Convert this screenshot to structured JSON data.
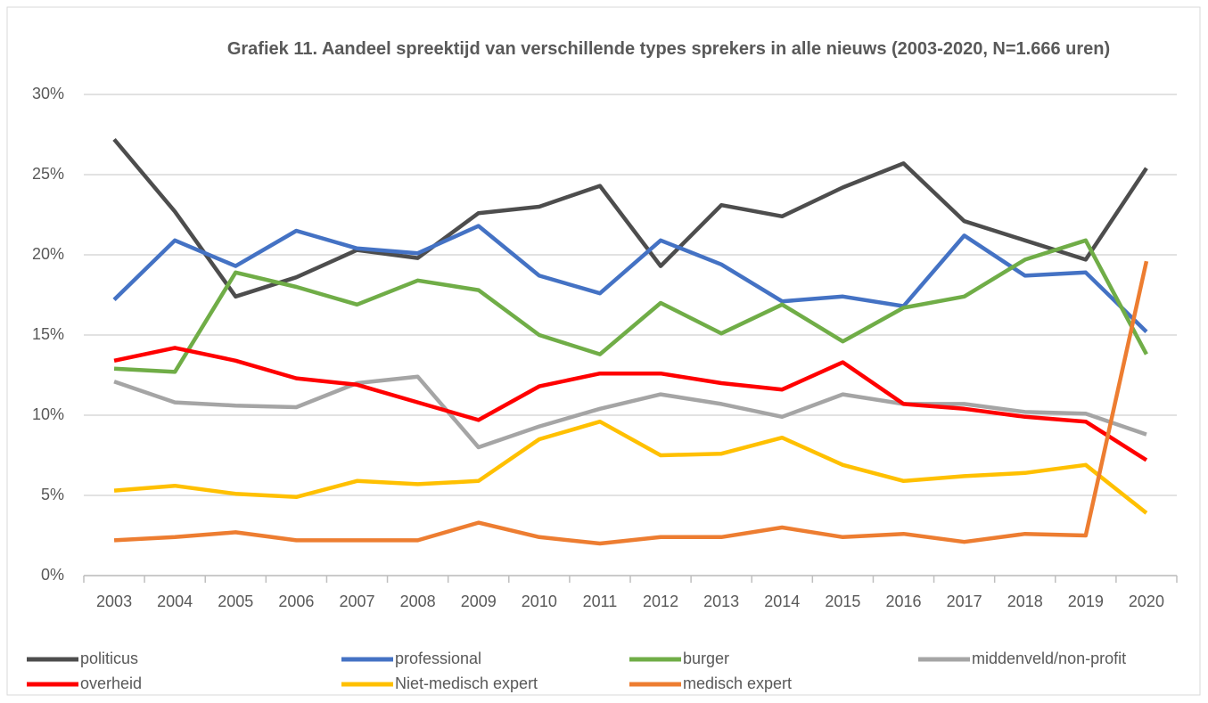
{
  "chart_data": {
    "type": "line",
    "title": "Grafiek 11. Aandeel spreektijd van verschillende types sprekers in alle nieuws (2003-2020, N=1.666 uren)",
    "categories": [
      "2003",
      "2004",
      "2005",
      "2006",
      "2007",
      "2008",
      "2009",
      "2010",
      "2011",
      "2012",
      "2013",
      "2014",
      "2015",
      "2016",
      "2017",
      "2018",
      "2019",
      "2020"
    ],
    "series": [
      {
        "name": "politicus",
        "color": "#4d4d4d",
        "values": [
          27.2,
          22.7,
          17.4,
          18.6,
          20.3,
          19.8,
          22.6,
          23.0,
          24.3,
          19.3,
          23.1,
          22.4,
          24.2,
          25.7,
          22.1,
          20.9,
          19.7,
          25.4
        ]
      },
      {
        "name": "professional",
        "color": "#4472c4",
        "values": [
          17.2,
          20.9,
          19.3,
          21.5,
          20.4,
          20.1,
          21.8,
          18.7,
          17.6,
          20.9,
          19.4,
          17.1,
          17.4,
          16.8,
          21.2,
          18.7,
          18.9,
          15.2
        ]
      },
      {
        "name": "burger",
        "color": "#70ad47",
        "values": [
          12.9,
          12.7,
          18.9,
          18.0,
          16.9,
          18.4,
          17.8,
          15.0,
          13.8,
          17.0,
          15.1,
          16.9,
          14.6,
          16.7,
          17.4,
          19.7,
          20.9,
          13.8
        ]
      },
      {
        "name": "middenveld/non-profit",
        "color": "#a5a5a5",
        "values": [
          12.1,
          10.8,
          10.6,
          10.5,
          12.0,
          12.4,
          8.0,
          9.3,
          10.4,
          11.3,
          10.7,
          9.9,
          11.3,
          10.7,
          10.7,
          10.2,
          10.1,
          8.8
        ]
      },
      {
        "name": "overheid",
        "color": "#ff0000",
        "values": [
          13.4,
          14.2,
          13.4,
          12.3,
          11.9,
          10.8,
          9.7,
          11.8,
          12.6,
          12.6,
          12.0,
          11.6,
          13.3,
          10.7,
          10.4,
          9.9,
          9.6,
          7.2
        ]
      },
      {
        "name": "Niet-medisch expert",
        "color": "#ffc000",
        "values": [
          5.3,
          5.6,
          5.1,
          4.9,
          5.9,
          5.7,
          5.9,
          8.5,
          9.6,
          7.5,
          7.6,
          8.6,
          6.9,
          5.9,
          6.2,
          6.4,
          6.9,
          3.9
        ]
      },
      {
        "name": "medisch expert",
        "color": "#ed7d31",
        "values": [
          2.2,
          2.4,
          2.7,
          2.2,
          2.2,
          2.2,
          3.3,
          2.4,
          2.0,
          2.4,
          2.4,
          3.0,
          2.4,
          2.6,
          2.1,
          2.6,
          2.5,
          19.6
        ]
      }
    ],
    "ylim": [
      0,
      30
    ],
    "yticks": [
      {
        "value": 0,
        "label": "0%"
      },
      {
        "value": 5,
        "label": "5%"
      },
      {
        "value": 10,
        "label": "10%"
      },
      {
        "value": 15,
        "label": "15%"
      },
      {
        "value": 20,
        "label": "20%"
      },
      {
        "value": 25,
        "label": "25%"
      },
      {
        "value": 30,
        "label": "30%"
      }
    ],
    "grid": true,
    "legend": "bottom"
  }
}
